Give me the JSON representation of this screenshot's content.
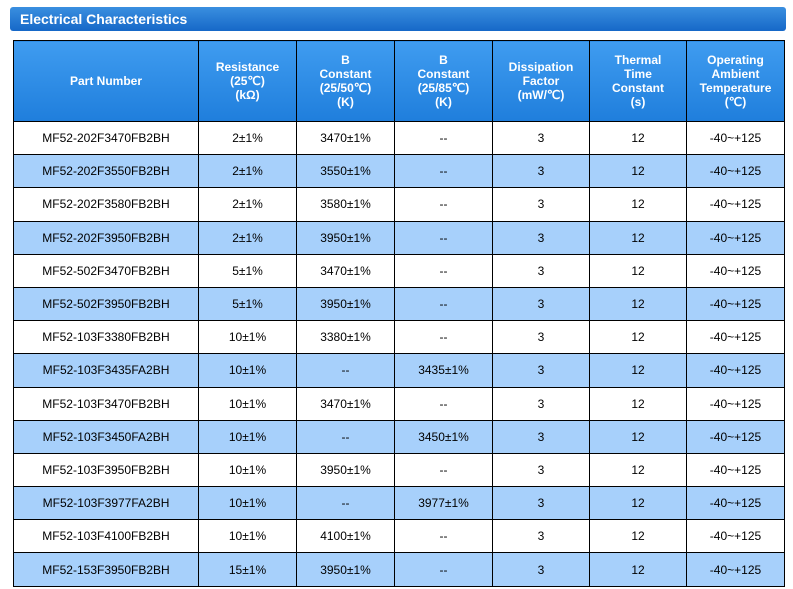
{
  "section_title": "Electrical Characteristics",
  "table": {
    "headers": [
      "Part Number",
      "Resistance\n(25℃)\n(kΩ)",
      "B\nConstant\n(25/50℃)\n(K)",
      "B\nConstant\n(25/85℃)\n(K)",
      "Dissipation\nFactor\n(mW/℃)",
      "Thermal\nTime\nConstant\n(s)",
      "Operating\nAmbient\nTemperature\n(℃)"
    ],
    "rows": [
      [
        "MF52-202F3470FB2BH",
        "2±1%",
        "3470±1%",
        "--",
        "3",
        "12",
        "-40~+125"
      ],
      [
        "MF52-202F3550FB2BH",
        "2±1%",
        "3550±1%",
        "--",
        "3",
        "12",
        "-40~+125"
      ],
      [
        "MF52-202F3580FB2BH",
        "2±1%",
        "3580±1%",
        "--",
        "3",
        "12",
        "-40~+125"
      ],
      [
        "MF52-202F3950FB2BH",
        "2±1%",
        "3950±1%",
        "--",
        "3",
        "12",
        "-40~+125"
      ],
      [
        "MF52-502F3470FB2BH",
        "5±1%",
        "3470±1%",
        "--",
        "3",
        "12",
        "-40~+125"
      ],
      [
        "MF52-502F3950FB2BH",
        "5±1%",
        "3950±1%",
        "--",
        "3",
        "12",
        "-40~+125"
      ],
      [
        "MF52-103F3380FB2BH",
        "10±1%",
        "3380±1%",
        "--",
        "3",
        "12",
        "-40~+125"
      ],
      [
        "MF52-103F3435FA2BH",
        "10±1%",
        "--",
        "3435±1%",
        "3",
        "12",
        "-40~+125"
      ],
      [
        "MF52-103F3470FB2BH",
        "10±1%",
        "3470±1%",
        "--",
        "3",
        "12",
        "-40~+125"
      ],
      [
        "MF52-103F3450FA2BH",
        "10±1%",
        "--",
        "3450±1%",
        "3",
        "12",
        "-40~+125"
      ],
      [
        "MF52-103F3950FB2BH",
        "10±1%",
        "3950±1%",
        "--",
        "3",
        "12",
        "-40~+125"
      ],
      [
        "MF52-103F3977FA2BH",
        "10±1%",
        "--",
        "3977±1%",
        "3",
        "12",
        "-40~+125"
      ],
      [
        "MF52-103F4100FB2BH",
        "10±1%",
        "4100±1%",
        "--",
        "3",
        "12",
        "-40~+125"
      ],
      [
        "MF52-153F3950FB2BH",
        "15±1%",
        "3950±1%",
        "--",
        "3",
        "12",
        "-40~+125"
      ]
    ]
  },
  "colors": {
    "title_bar": "#1668c8",
    "header_bg": "#2a88e4",
    "alt_row_bg": "#a7d0fb"
  }
}
